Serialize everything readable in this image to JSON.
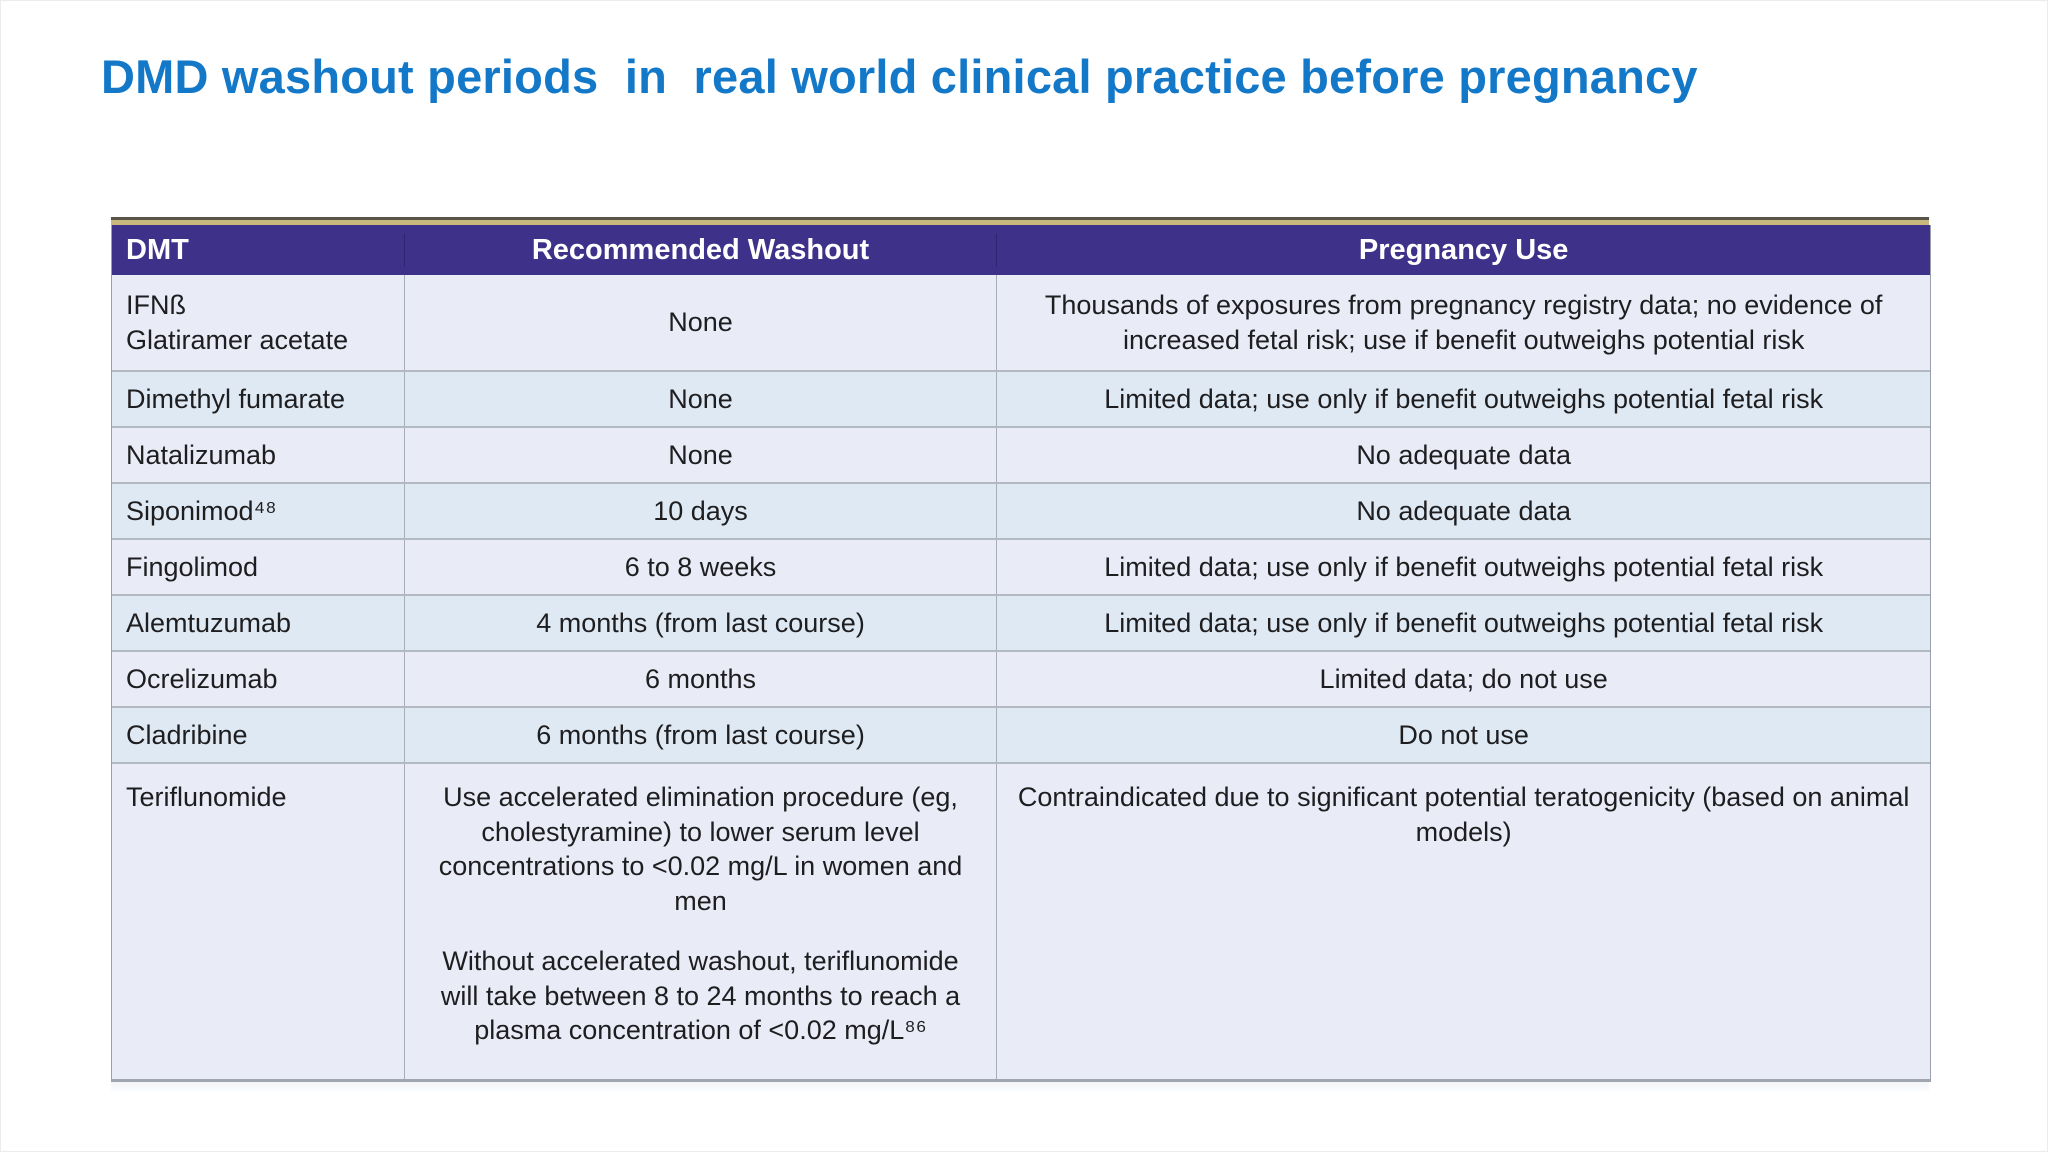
{
  "title": "DMD washout periods  in  real world clinical practice before pregnancy",
  "accent_colors": {
    "header_purple": "#3e3189",
    "top_tan": "#c9b87b",
    "title_blue": "#1478c8",
    "row_lavender": "#e9ebf7",
    "row_blue": "#dfe9f3"
  },
  "table": {
    "columns": [
      "DMT",
      "Recommended Washout",
      "Pregnancy Use"
    ],
    "rows": [
      {
        "dmt": [
          "IFNß",
          "Glatiramer acetate"
        ],
        "washout": "None",
        "pregnancy": "Thousands of exposures from pregnancy registry data; no evidence of increased fetal risk; use if benefit outweighs potential risk"
      },
      {
        "dmt": "Dimethyl fumarate",
        "washout": "None",
        "pregnancy": "Limited data; use only if benefit outweighs potential fetal risk"
      },
      {
        "dmt": "Natalizumab",
        "washout": "None",
        "pregnancy": "No adequate data"
      },
      {
        "dmt": "Siponimod⁴⁸",
        "washout": "10 days",
        "pregnancy": "No adequate data"
      },
      {
        "dmt": "Fingolimod",
        "washout": "6 to 8 weeks",
        "pregnancy": "Limited data; use only if benefit outweighs potential fetal risk"
      },
      {
        "dmt": "Alemtuzumab",
        "washout": "4 months (from last course)",
        "pregnancy": "Limited data; use only if benefit outweighs potential fetal risk"
      },
      {
        "dmt": "Ocrelizumab",
        "washout": "6 months",
        "pregnancy": "Limited data; do not use"
      },
      {
        "dmt": "Cladribine",
        "washout": "6 months (from last course)",
        "pregnancy": "Do not use"
      },
      {
        "dmt": "Teriflunomide",
        "washout": [
          "Use accelerated elimination procedure (eg, cholestyramine) to lower serum level concentrations to <0.02 mg/L in women and men",
          "Without accelerated washout, teriflunomide will take between 8 to 24 months to reach a plasma concentration of <0.02 mg/L⁸⁶"
        ],
        "pregnancy": "Contraindicated due to significant potential teratogenicity (based on animal models)"
      }
    ]
  },
  "chart_data": {
    "type": "table",
    "title": "DMD washout periods  in  real world clinical practice before pregnancy",
    "columns": [
      "DMT",
      "Recommended Washout",
      "Pregnancy Use"
    ],
    "rows": [
      [
        "IFNß / Glatiramer acetate",
        "None",
        "Thousands of exposures from pregnancy registry data; no evidence of increased fetal risk; use if benefit outweighs potential risk"
      ],
      [
        "Dimethyl fumarate",
        "None",
        "Limited data; use only if benefit outweighs potential fetal risk"
      ],
      [
        "Natalizumab",
        "None",
        "No adequate data"
      ],
      [
        "Siponimod⁴⁸",
        "10 days",
        "No adequate data"
      ],
      [
        "Fingolimod",
        "6 to 8 weeks",
        "Limited data; use only if benefit outweighs potential fetal risk"
      ],
      [
        "Alemtuzumab",
        "4 months (from last course)",
        "Limited data; use only if benefit outweighs potential fetal risk"
      ],
      [
        "Ocrelizumab",
        "6 months",
        "Limited data; do not use"
      ],
      [
        "Cladribine",
        "6 months (from last course)",
        "Do not use"
      ],
      [
        "Teriflunomide",
        "Use accelerated elimination procedure (eg, cholestyramine) to lower serum level concentrations to <0.02 mg/L in women and men | Without accelerated washout, teriflunomide will take between 8 to 24 months to reach a plasma concentration of <0.02 mg/L⁸⁶",
        "Contraindicated due to significant potential teratogenicity (based on animal models)"
      ]
    ]
  }
}
